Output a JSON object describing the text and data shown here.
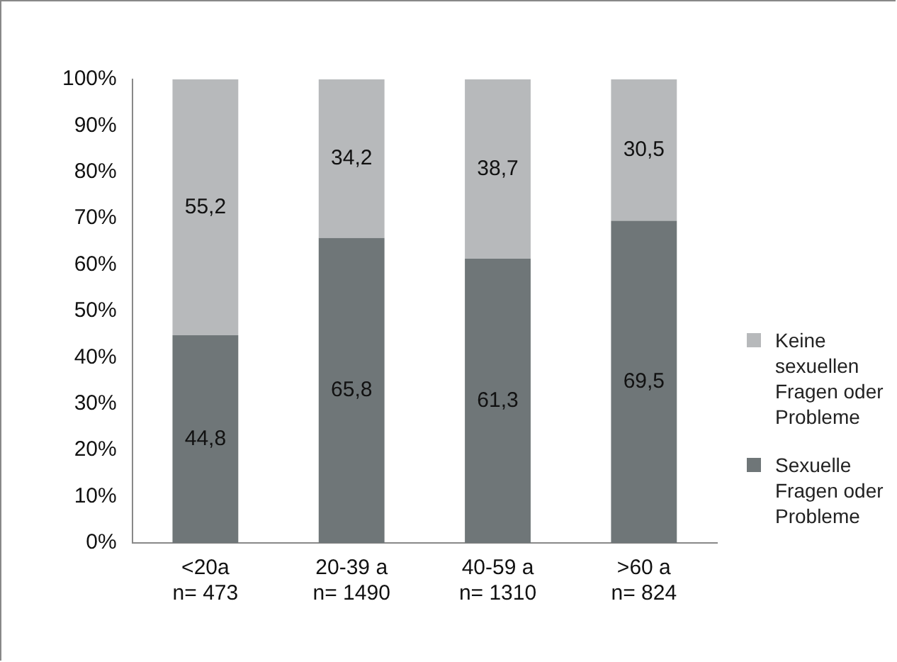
{
  "chart_data": {
    "type": "bar",
    "stacked": true,
    "categories": [
      "<20a\nn= 473",
      "20-39 a\nn= 1490",
      "40-59 a\nn= 1310",
      ">60 a\nn= 824"
    ],
    "series": [
      {
        "name": "Sexuelle Fragen oder Probleme",
        "color": "#6f7678",
        "values": [
          44.8,
          65.8,
          61.3,
          69.5
        ],
        "value_labels": [
          "44,8",
          "65,8",
          "61,3",
          "69,5"
        ]
      },
      {
        "name": "Keine sexuellen Fragen oder Probleme",
        "color": "#b7b9bb",
        "values": [
          55.2,
          34.2,
          38.7,
          30.5
        ],
        "value_labels": [
          "55,2",
          "34,2",
          "38,7",
          "30,5"
        ]
      }
    ],
    "ylim": [
      0,
      100
    ],
    "yticks": [
      {
        "value": 0,
        "label": "0%"
      },
      {
        "value": 10,
        "label": "10%"
      },
      {
        "value": 20,
        "label": "20%"
      },
      {
        "value": 30,
        "label": "30%"
      },
      {
        "value": 40,
        "label": "40%"
      },
      {
        "value": 50,
        "label": "50%"
      },
      {
        "value": 60,
        "label": "60%"
      },
      {
        "value": 70,
        "label": "70%"
      },
      {
        "value": 80,
        "label": "80%"
      },
      {
        "value": 90,
        "label": "90%"
      },
      {
        "value": 100,
        "label": "100%"
      }
    ],
    "grid": false,
    "legend": "right"
  }
}
